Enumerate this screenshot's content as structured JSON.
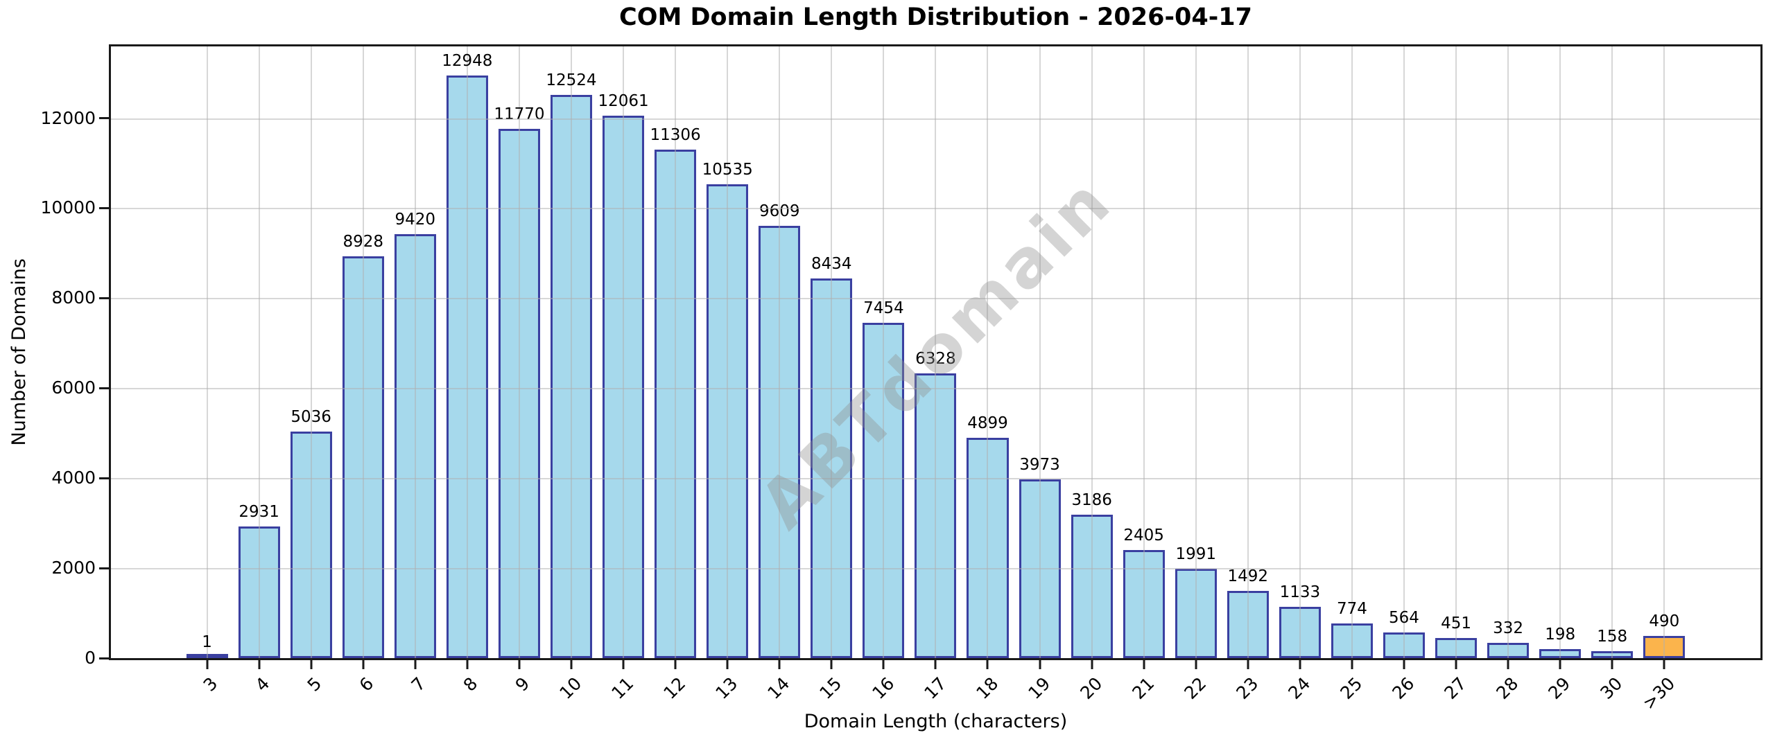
{
  "chart_data": {
    "type": "bar",
    "title": "COM Domain Length Distribution - 2026-04-17",
    "xlabel": "Domain Length (characters)",
    "ylabel": "Number of Domains",
    "watermark": "ABTdomain",
    "categories": [
      "3",
      "4",
      "5",
      "6",
      "7",
      "8",
      "9",
      "10",
      "11",
      "12",
      "13",
      "14",
      "15",
      "16",
      "17",
      "18",
      "19",
      "20",
      "21",
      "22",
      "23",
      "24",
      "25",
      "26",
      "27",
      "28",
      "29",
      "30",
      ">30"
    ],
    "values": [
      1,
      2931,
      5036,
      8928,
      9420,
      12948,
      11770,
      12524,
      12061,
      11306,
      10535,
      9609,
      8434,
      7454,
      6328,
      4899,
      3973,
      3186,
      2405,
      1991,
      1492,
      1133,
      774,
      564,
      451,
      332,
      198,
      158,
      490
    ],
    "highlight_category": ">30",
    "ylim": [
      0,
      13595
    ],
    "yticks": [
      0,
      2000,
      4000,
      6000,
      8000,
      10000,
      12000
    ],
    "grid": true,
    "legend_position": "none",
    "colors": {
      "bar_fill": "#A6D9EC",
      "bar_edge": "#3A3FA0",
      "highlight_fill": "#FBB44C",
      "grid": "#B0B0B0",
      "watermark": "#909090",
      "axis": "#1a1a1a",
      "text": "#000000"
    }
  }
}
